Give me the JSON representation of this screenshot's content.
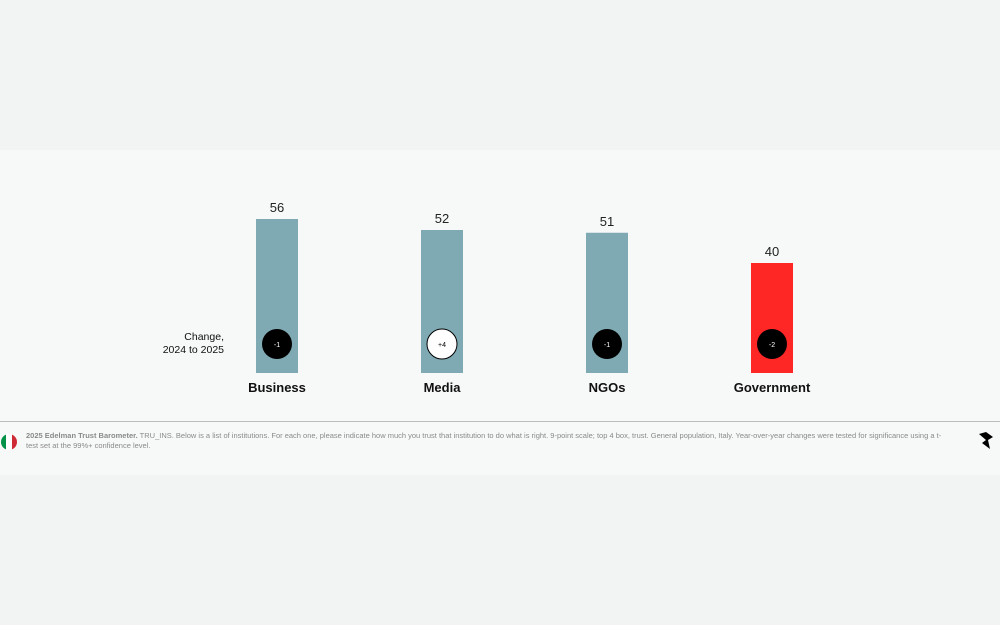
{
  "chart_data": {
    "type": "bar",
    "categories": [
      "Business",
      "Media",
      "NGOs",
      "Government"
    ],
    "values": [
      56,
      52,
      51,
      40
    ],
    "changes": [
      "-1",
      "+4",
      "-1",
      "-2"
    ],
    "change_significant": [
      false,
      true,
      false,
      false
    ],
    "ylim": [
      0,
      100
    ],
    "title": "",
    "xlabel": "",
    "ylabel": "",
    "colors": {
      "default_bar": "#7faab3",
      "highlight_bar": "#ff2626",
      "highlight_category": "Government",
      "badge_dark": "#000000",
      "badge_light": "#ffffff"
    },
    "grid": false,
    "legend": "none"
  },
  "change_label": [
    "Change,",
    "2024 to 2025"
  ],
  "footnote": {
    "source": "2025 Edelman Trust Barometer.",
    "text": " TRU_INS. Below is a list of institutions. For each one, please indicate how much you trust that institution to do what is right. 9-point scale; top 4 box, trust. General population, Italy. Year-over-year changes were tested for significance using a t-test set at the 99%+ confidence level."
  },
  "icons": {
    "flag": "italy-flag-icon",
    "nav": "arrow-icon"
  },
  "flag_colors": [
    "#009246",
    "#ffffff",
    "#ce2b37"
  ]
}
